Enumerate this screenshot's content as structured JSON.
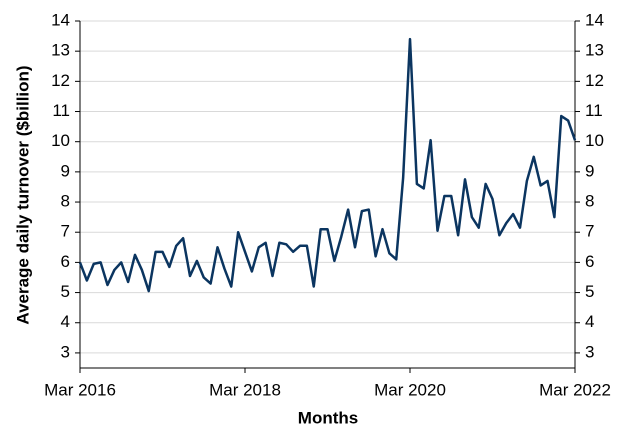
{
  "chart_data": {
    "type": "line",
    "x_label": "Months",
    "y_label": "Average daily turnover ($billion)",
    "x": [
      "2016-03",
      "2016-04",
      "2016-05",
      "2016-06",
      "2016-07",
      "2016-08",
      "2016-09",
      "2016-10",
      "2016-11",
      "2016-12",
      "2017-01",
      "2017-02",
      "2017-03",
      "2017-04",
      "2017-05",
      "2017-06",
      "2017-07",
      "2017-08",
      "2017-09",
      "2017-10",
      "2017-11",
      "2017-12",
      "2018-01",
      "2018-02",
      "2018-03",
      "2018-04",
      "2018-05",
      "2018-06",
      "2018-07",
      "2018-08",
      "2018-09",
      "2018-10",
      "2018-11",
      "2018-12",
      "2019-01",
      "2019-02",
      "2019-03",
      "2019-04",
      "2019-05",
      "2019-06",
      "2019-07",
      "2019-08",
      "2019-09",
      "2019-10",
      "2019-11",
      "2019-12",
      "2020-01",
      "2020-02",
      "2020-03",
      "2020-04",
      "2020-05",
      "2020-06",
      "2020-07",
      "2020-08",
      "2020-09",
      "2020-10",
      "2020-11",
      "2020-12",
      "2021-01",
      "2021-02",
      "2021-03",
      "2021-04",
      "2021-05",
      "2021-06",
      "2021-07",
      "2021-08",
      "2021-09",
      "2021-10",
      "2021-11",
      "2021-12",
      "2022-01",
      "2022-02",
      "2022-03"
    ],
    "series": [
      {
        "name": "Average daily turnover",
        "color": "#0b3560",
        "values": [
          6.0,
          5.4,
          5.95,
          6.0,
          5.25,
          5.75,
          6.0,
          5.35,
          6.25,
          5.75,
          5.05,
          6.35,
          6.35,
          5.85,
          6.55,
          6.8,
          5.55,
          6.05,
          5.5,
          5.3,
          6.5,
          5.8,
          5.2,
          7.0,
          6.35,
          5.7,
          6.5,
          6.65,
          5.55,
          6.65,
          6.6,
          6.35,
          6.55,
          6.55,
          5.2,
          7.1,
          7.1,
          6.05,
          6.85,
          7.75,
          6.5,
          7.7,
          7.75,
          6.2,
          7.1,
          6.3,
          6.1,
          8.8,
          13.4,
          8.6,
          8.45,
          10.05,
          7.05,
          8.2,
          8.2,
          6.9,
          8.75,
          7.5,
          7.15,
          8.6,
          8.1,
          6.9,
          7.3,
          7.6,
          7.15,
          8.7,
          9.5,
          8.55,
          8.7,
          7.5,
          10.85,
          10.7,
          10.05
        ]
      }
    ],
    "xlim": [
      "2016-03",
      "2022-03"
    ],
    "xticks": [
      {
        "value": "2016-03",
        "label": "Mar 2016"
      },
      {
        "value": "2018-03",
        "label": "Mar 2018"
      },
      {
        "value": "2020-03",
        "label": "Mar 2020"
      },
      {
        "value": "2022-03",
        "label": "Mar 2022"
      }
    ],
    "ylim": [
      2.5,
      14
    ],
    "yticks": [
      3,
      4,
      5,
      6,
      7,
      8,
      9,
      10,
      11,
      12,
      13,
      14
    ],
    "mirror_y_axis": true,
    "grid": true
  }
}
